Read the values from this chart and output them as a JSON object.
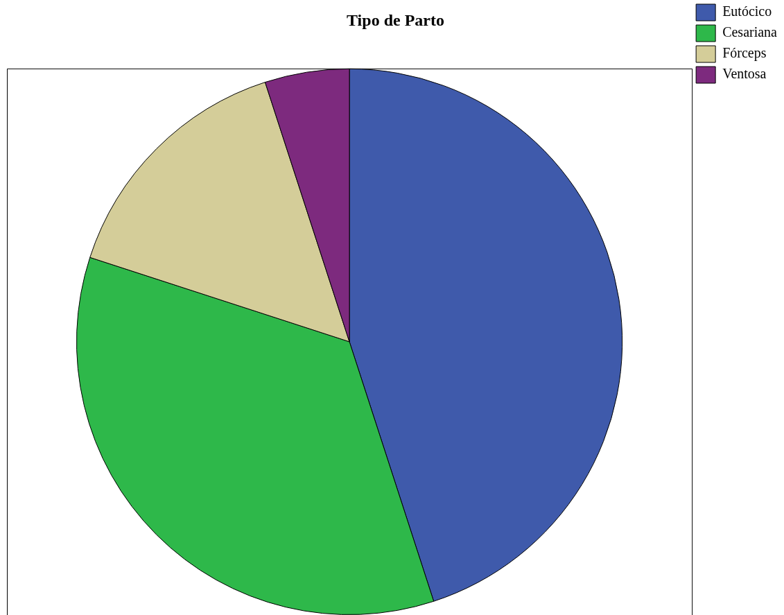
{
  "chart_data": {
    "type": "pie",
    "title": "Tipo de Parto",
    "categories": [
      "Eutócico",
      "Cesariana",
      "Fórceps",
      "Ventosa"
    ],
    "values": [
      45,
      35,
      15,
      5
    ],
    "colors": [
      "#3f5aab",
      "#2eb84a",
      "#d4cd99",
      "#7d2a7e"
    ],
    "legend": "top right"
  }
}
